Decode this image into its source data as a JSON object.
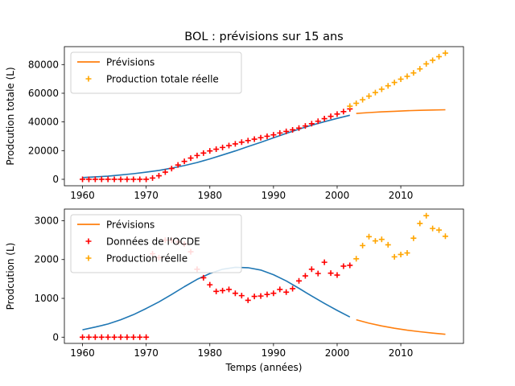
{
  "title": "BOL : prévisions sur 15 ans",
  "colors": {
    "fit": "#1f77b4",
    "forecast": "#ff7f0e",
    "oecd": "#ff0000",
    "actual": "#ffa500"
  },
  "chart_data": [
    {
      "type": "line",
      "title": "BOL : prévisions sur 15 ans",
      "xlabel": "",
      "ylabel": "Prodcution totale (L)",
      "xlim": [
        1957.15,
        2019.85
      ],
      "ylim": [
        -4500,
        92500
      ],
      "xticks": [
        1960,
        1970,
        1980,
        1990,
        2000,
        2010
      ],
      "yticks": [
        0,
        20000,
        40000,
        60000,
        80000
      ],
      "ytick_labels": [
        "0",
        "20000",
        "40000",
        "60000",
        "80000"
      ],
      "legend_placement": "upper left",
      "legend": [
        {
          "label": "Prévisions",
          "kind": "line",
          "color": "#ff7f0e"
        },
        {
          "label": "Production totale réelle",
          "kind": "plus",
          "color": "#ffa500"
        }
      ],
      "series": [
        {
          "kind": "line",
          "color": "#1f77b4",
          "x": [
            1960,
            1962,
            1964,
            1966,
            1968,
            1970,
            1972,
            1974,
            1976,
            1978,
            1980,
            1982,
            1984,
            1986,
            1988,
            1990,
            1992,
            1994,
            1996,
            1998,
            2000,
            2002
          ],
          "y": [
            1200,
            1700,
            2200,
            3000,
            3900,
            5000,
            6200,
            7800,
            9600,
            11700,
            14200,
            17000,
            19800,
            22800,
            25800,
            28900,
            32000,
            35000,
            37700,
            40200,
            42500,
            44700
          ]
        },
        {
          "kind": "line",
          "color": "#ff7f0e",
          "x": [
            2003,
            2005,
            2007,
            2009,
            2011,
            2013,
            2015,
            2017
          ],
          "y": [
            45900,
            46500,
            47000,
            47400,
            47800,
            48100,
            48300,
            48500
          ]
        },
        {
          "kind": "plus",
          "color": "#ff0000",
          "x": [
            1960,
            1961,
            1962,
            1963,
            1964,
            1965,
            1966,
            1967,
            1968,
            1969,
            1970,
            1971,
            1972,
            1973,
            1974,
            1975,
            1976,
            1977,
            1978,
            1979,
            1980,
            1981,
            1982,
            1983,
            1984,
            1985,
            1986,
            1987,
            1988,
            1989,
            1990,
            1991,
            1992,
            1993,
            1994,
            1995,
            1996,
            1997,
            1998,
            1999,
            2000,
            2001,
            2002
          ],
          "y": [
            0,
            0,
            0,
            0,
            0,
            0,
            0,
            0,
            0,
            0,
            0,
            900,
            2500,
            5000,
            7500,
            10000,
            12500,
            14800,
            16600,
            18300,
            19800,
            21000,
            22200,
            23500,
            24700,
            25900,
            27000,
            28000,
            29000,
            30000,
            31000,
            32300,
            33400,
            34500,
            35700,
            37200,
            38800,
            40500,
            42300,
            43900,
            45500,
            47200,
            49100
          ]
        },
        {
          "kind": "plus",
          "color": "#ffa500",
          "x": [
            2002,
            2003,
            2004,
            2005,
            2006,
            2007,
            2008,
            2009,
            2010,
            2011,
            2012,
            2013,
            2014,
            2015,
            2016,
            2017
          ],
          "y": [
            51000,
            53000,
            55500,
            58000,
            60500,
            62800,
            65200,
            67500,
            69800,
            71800,
            74200,
            77000,
            80500,
            83000,
            85500,
            88000
          ]
        }
      ]
    },
    {
      "type": "line",
      "title": "",
      "xlabel": "Temps (années)",
      "ylabel": "Prodcution (L)",
      "xlim": [
        1957.15,
        2019.85
      ],
      "ylim": [
        -160,
        3300
      ],
      "xticks": [
        1960,
        1970,
        1980,
        1990,
        2000,
        2010
      ],
      "yticks": [
        0,
        1000,
        2000,
        3000
      ],
      "ytick_labels": [
        "0",
        "1000",
        "2000",
        "3000"
      ],
      "legend_placement": "upper left",
      "legend": [
        {
          "label": "Prévisions",
          "kind": "line",
          "color": "#ff7f0e"
        },
        {
          "label": "Données de l'OCDE",
          "kind": "plus",
          "color": "#ff0000"
        },
        {
          "label": "Production réelle",
          "kind": "plus",
          "color": "#ffa500"
        }
      ],
      "series": [
        {
          "kind": "line",
          "color": "#1f77b4",
          "x": [
            1960,
            1962,
            1964,
            1966,
            1968,
            1970,
            1972,
            1974,
            1976,
            1978,
            1980,
            1982,
            1984,
            1986,
            1988,
            1990,
            1992,
            1994,
            1996,
            1998,
            2000,
            2002
          ],
          "y": [
            190,
            260,
            340,
            450,
            580,
            740,
            910,
            1100,
            1300,
            1490,
            1640,
            1750,
            1800,
            1790,
            1730,
            1610,
            1450,
            1260,
            1060,
            870,
            690,
            520
          ]
        },
        {
          "kind": "line",
          "color": "#ff7f0e",
          "x": [
            2003,
            2005,
            2007,
            2009,
            2011,
            2013,
            2015,
            2017
          ],
          "y": [
            450,
            360,
            290,
            230,
            180,
            140,
            105,
            75
          ]
        },
        {
          "kind": "plus",
          "color": "#ff0000",
          "x": [
            1960,
            1961,
            1962,
            1963,
            1964,
            1965,
            1966,
            1967,
            1968,
            1969,
            1970,
            1971,
            1972,
            1973,
            1974,
            1975,
            1976,
            1977,
            1978,
            1979,
            1980,
            1981,
            1982,
            1983,
            1984,
            1985,
            1986,
            1987,
            1988,
            1989,
            1990,
            1991,
            1992,
            1993,
            1994,
            1995,
            1996,
            1997,
            1998,
            1999,
            2000,
            2001,
            2002
          ],
          "y": [
            0,
            0,
            0,
            0,
            0,
            0,
            0,
            0,
            0,
            0,
            0,
            2150,
            2050,
            2500,
            2500,
            2450,
            2400,
            2200,
            1750,
            1530,
            1350,
            1180,
            1200,
            1230,
            1130,
            1070,
            950,
            1050,
            1060,
            1100,
            1130,
            1230,
            1160,
            1250,
            1450,
            1580,
            1750,
            1640,
            1930,
            1650,
            1600,
            1830,
            1850
          ]
        },
        {
          "kind": "plus",
          "color": "#ffa500",
          "x": [
            2003,
            2004,
            2005,
            2006,
            2007,
            2008,
            2009,
            2010,
            2011,
            2012,
            2013,
            2014,
            2015,
            2016,
            2017
          ],
          "y": [
            2020,
            2360,
            2590,
            2480,
            2520,
            2380,
            2070,
            2130,
            2170,
            2550,
            2930,
            3130,
            2800,
            2760,
            2600
          ]
        }
      ]
    }
  ]
}
